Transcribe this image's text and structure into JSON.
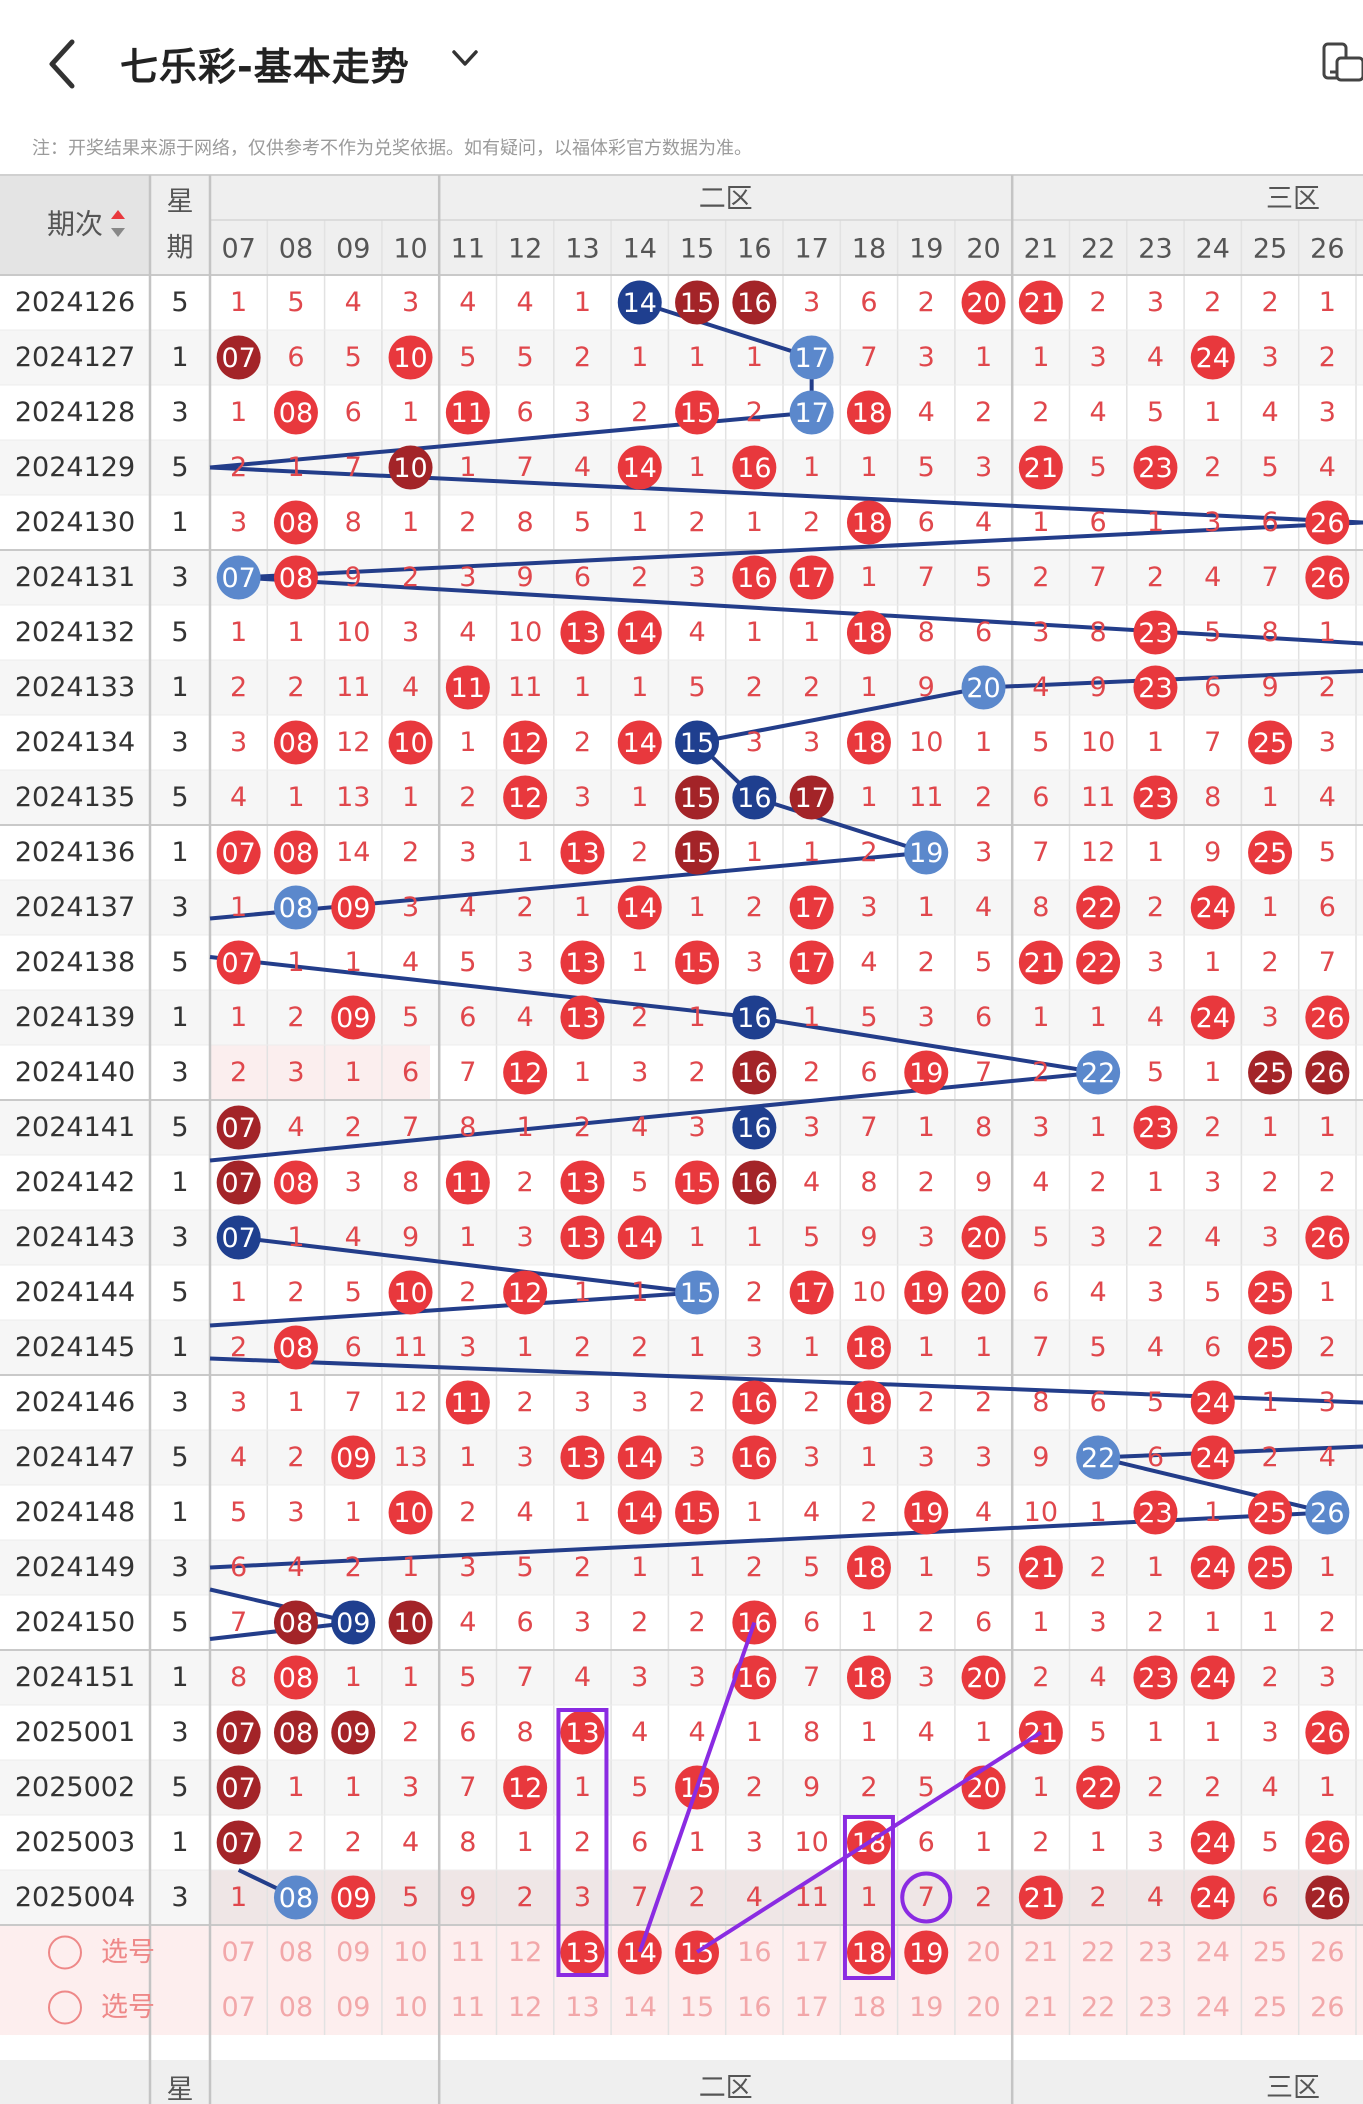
{
  "header": {
    "back_icon": "chevron-left-icon",
    "title": "七乐彩-基本走势",
    "dropdown_icon": "chevron-down-icon",
    "device_icon": "phone-tablet-icon"
  },
  "note": "注：开奖结果来源于网络，仅供参考不作为兑奖依据。如有疑问，以福体彩官方数据为准。",
  "table": {
    "period_label": "期次",
    "sort_icon": "sort-up-down-icon",
    "weekday_label_top": "星",
    "weekday_label_bottom": "期",
    "zone2_label": "二区",
    "zone3_label": "三区",
    "columns": [
      "07",
      "08",
      "09",
      "10",
      "11",
      "12",
      "13",
      "14",
      "15",
      "16",
      "17",
      "18",
      "19",
      "20",
      "21",
      "22",
      "23",
      "24",
      "25",
      "26"
    ],
    "rows": [
      {
        "period": "2024126",
        "wk": "5",
        "c": [
          "1",
          "5",
          "4",
          "3",
          "4",
          "4",
          "1",
          "14",
          "15",
          "16",
          "3",
          "6",
          "2",
          "20",
          "21",
          "2",
          "3",
          "2",
          "2",
          "1"
        ]
      },
      {
        "period": "2024127",
        "wk": "1",
        "c": [
          "07",
          "6",
          "5",
          "10",
          "5",
          "5",
          "2",
          "1",
          "1",
          "1",
          "17",
          "7",
          "3",
          "1",
          "1",
          "3",
          "4",
          "24",
          "3",
          "2"
        ]
      },
      {
        "period": "2024128",
        "wk": "3",
        "c": [
          "1",
          "08",
          "6",
          "1",
          "11",
          "6",
          "3",
          "2",
          "15",
          "2",
          "17",
          "18",
          "4",
          "2",
          "2",
          "4",
          "5",
          "1",
          "4",
          "3"
        ]
      },
      {
        "period": "2024129",
        "wk": "5",
        "c": [
          "2",
          "1",
          "7",
          "10",
          "1",
          "7",
          "4",
          "14",
          "1",
          "16",
          "1",
          "1",
          "5",
          "3",
          "21",
          "5",
          "23",
          "2",
          "5",
          "4"
        ]
      },
      {
        "period": "2024130",
        "wk": "1",
        "c": [
          "3",
          "08",
          "8",
          "1",
          "2",
          "8",
          "5",
          "1",
          "2",
          "1",
          "2",
          "18",
          "6",
          "4",
          "1",
          "6",
          "1",
          "3",
          "6",
          "26"
        ]
      },
      {
        "period": "2024131",
        "wk": "3",
        "c": [
          "07",
          "08",
          "9",
          "2",
          "3",
          "9",
          "6",
          "2",
          "3",
          "16",
          "17",
          "1",
          "7",
          "5",
          "2",
          "7",
          "2",
          "4",
          "7",
          "26"
        ]
      },
      {
        "period": "2024132",
        "wk": "5",
        "c": [
          "1",
          "1",
          "10",
          "3",
          "4",
          "10",
          "13",
          "14",
          "4",
          "1",
          "1",
          "18",
          "8",
          "6",
          "3",
          "8",
          "23",
          "5",
          "8",
          "1"
        ]
      },
      {
        "period": "2024133",
        "wk": "1",
        "c": [
          "2",
          "2",
          "11",
          "4",
          "11",
          "11",
          "1",
          "1",
          "5",
          "2",
          "2",
          "1",
          "9",
          "20",
          "4",
          "9",
          "23",
          "6",
          "9",
          "2"
        ]
      },
      {
        "period": "2024134",
        "wk": "3",
        "c": [
          "3",
          "08",
          "12",
          "10",
          "1",
          "12",
          "2",
          "14",
          "15",
          "3",
          "3",
          "18",
          "10",
          "1",
          "5",
          "10",
          "1",
          "7",
          "25",
          "3"
        ]
      },
      {
        "period": "2024135",
        "wk": "5",
        "c": [
          "4",
          "1",
          "13",
          "1",
          "2",
          "12",
          "3",
          "1",
          "15",
          "16",
          "17",
          "1",
          "11",
          "2",
          "6",
          "11",
          "23",
          "8",
          "1",
          "4"
        ]
      },
      {
        "period": "2024136",
        "wk": "1",
        "c": [
          "07",
          "08",
          "14",
          "2",
          "3",
          "1",
          "13",
          "2",
          "15",
          "1",
          "1",
          "2",
          "19",
          "3",
          "7",
          "12",
          "1",
          "9",
          "25",
          "5"
        ]
      },
      {
        "period": "2024137",
        "wk": "3",
        "c": [
          "1",
          "08",
          "09",
          "3",
          "4",
          "2",
          "1",
          "14",
          "1",
          "2",
          "17",
          "3",
          "1",
          "4",
          "8",
          "22",
          "2",
          "24",
          "1",
          "6"
        ]
      },
      {
        "period": "2024138",
        "wk": "5",
        "c": [
          "07",
          "1",
          "1",
          "4",
          "5",
          "3",
          "13",
          "1",
          "15",
          "3",
          "17",
          "4",
          "2",
          "5",
          "21",
          "22",
          "3",
          "1",
          "2",
          "7"
        ]
      },
      {
        "period": "2024139",
        "wk": "1",
        "c": [
          "1",
          "2",
          "09",
          "5",
          "6",
          "4",
          "13",
          "2",
          "1",
          "16",
          "1",
          "5",
          "3",
          "6",
          "1",
          "1",
          "4",
          "24",
          "3",
          "26"
        ]
      },
      {
        "period": "2024140",
        "wk": "3",
        "c": [
          "2",
          "3",
          "1",
          "6",
          "7",
          "12",
          "1",
          "3",
          "2",
          "16",
          "2",
          "6",
          "19",
          "7",
          "2",
          "22",
          "5",
          "1",
          "25",
          "26"
        ]
      },
      {
        "period": "2024141",
        "wk": "5",
        "c": [
          "07",
          "4",
          "2",
          "7",
          "8",
          "1",
          "2",
          "4",
          "3",
          "16",
          "3",
          "7",
          "1",
          "8",
          "3",
          "1",
          "23",
          "2",
          "1",
          "1"
        ]
      },
      {
        "period": "2024142",
        "wk": "1",
        "c": [
          "07",
          "08",
          "3",
          "8",
          "11",
          "2",
          "13",
          "5",
          "15",
          "16",
          "4",
          "8",
          "2",
          "9",
          "4",
          "2",
          "1",
          "3",
          "2",
          "2"
        ]
      },
      {
        "period": "2024143",
        "wk": "3",
        "c": [
          "07",
          "1",
          "4",
          "9",
          "1",
          "3",
          "13",
          "14",
          "1",
          "1",
          "5",
          "9",
          "3",
          "20",
          "5",
          "3",
          "2",
          "4",
          "3",
          "26"
        ]
      },
      {
        "period": "2024144",
        "wk": "5",
        "c": [
          "1",
          "2",
          "5",
          "10",
          "2",
          "12",
          "1",
          "1",
          "15",
          "2",
          "17",
          "10",
          "19",
          "20",
          "6",
          "4",
          "3",
          "5",
          "25",
          "1"
        ]
      },
      {
        "period": "2024145",
        "wk": "1",
        "c": [
          "2",
          "08",
          "6",
          "11",
          "3",
          "1",
          "2",
          "2",
          "1",
          "3",
          "1",
          "18",
          "1",
          "1",
          "7",
          "5",
          "4",
          "6",
          "25",
          "2"
        ]
      },
      {
        "period": "2024146",
        "wk": "3",
        "c": [
          "3",
          "1",
          "7",
          "12",
          "11",
          "2",
          "3",
          "3",
          "2",
          "16",
          "2",
          "18",
          "2",
          "2",
          "8",
          "6",
          "5",
          "24",
          "1",
          "3"
        ]
      },
      {
        "period": "2024147",
        "wk": "5",
        "c": [
          "4",
          "2",
          "09",
          "13",
          "1",
          "3",
          "13",
          "14",
          "3",
          "16",
          "3",
          "1",
          "3",
          "3",
          "9",
          "22",
          "6",
          "24",
          "2",
          "4"
        ]
      },
      {
        "period": "2024148",
        "wk": "1",
        "c": [
          "5",
          "3",
          "1",
          "10",
          "2",
          "4",
          "1",
          "14",
          "15",
          "1",
          "4",
          "2",
          "19",
          "4",
          "10",
          "1",
          "23",
          "1",
          "25",
          "26"
        ]
      },
      {
        "period": "2024149",
        "wk": "3",
        "c": [
          "6",
          "4",
          "2",
          "1",
          "3",
          "5",
          "2",
          "1",
          "1",
          "2",
          "5",
          "18",
          "1",
          "5",
          "21",
          "2",
          "1",
          "24",
          "25",
          "1"
        ]
      },
      {
        "period": "2024150",
        "wk": "5",
        "c": [
          "7",
          "08",
          "09",
          "10",
          "4",
          "6",
          "3",
          "2",
          "2",
          "16",
          "6",
          "1",
          "2",
          "6",
          "1",
          "3",
          "2",
          "1",
          "1",
          "2"
        ]
      },
      {
        "period": "2024151",
        "wk": "1",
        "c": [
          "8",
          "08",
          "1",
          "1",
          "5",
          "7",
          "4",
          "3",
          "3",
          "16",
          "7",
          "18",
          "3",
          "20",
          "2",
          "4",
          "23",
          "24",
          "2",
          "3"
        ]
      },
      {
        "period": "2025001",
        "wk": "3",
        "c": [
          "07",
          "08",
          "09",
          "2",
          "6",
          "8",
          "13",
          "4",
          "4",
          "1",
          "8",
          "1",
          "4",
          "1",
          "21",
          "5",
          "1",
          "1",
          "3",
          "26"
        ]
      },
      {
        "period": "2025002",
        "wk": "5",
        "c": [
          "07",
          "1",
          "1",
          "3",
          "7",
          "12",
          "1",
          "5",
          "15",
          "2",
          "9",
          "2",
          "5",
          "20",
          "1",
          "22",
          "2",
          "2",
          "4",
          "1"
        ]
      },
      {
        "period": "2025003",
        "wk": "1",
        "c": [
          "07",
          "2",
          "2",
          "4",
          "8",
          "1",
          "2",
          "6",
          "1",
          "3",
          "10",
          "18",
          "6",
          "1",
          "2",
          "1",
          "3",
          "24",
          "5",
          "26"
        ]
      },
      {
        "period": "2025004",
        "wk": "3",
        "c": [
          "1",
          "08",
          "09",
          "5",
          "9",
          "2",
          "3",
          "7",
          "2",
          "4",
          "11",
          "1",
          "7",
          "2",
          "21",
          "2",
          "4",
          "24",
          "6",
          "26"
        ]
      }
    ],
    "pick_label": "选号",
    "pick_row1_selected": [
      "13",
      "14",
      "15",
      "18",
      "19"
    ],
    "footer_period": "-"
  },
  "colors": {
    "red_ball": "#e8383d",
    "dark_ball": "#a32428",
    "blue_ball": "#5b88cc",
    "navy_ball": "#1f3f8f",
    "line": "#233d8a",
    "purple": "#8a2be2",
    "text_red": "#e0474c"
  }
}
